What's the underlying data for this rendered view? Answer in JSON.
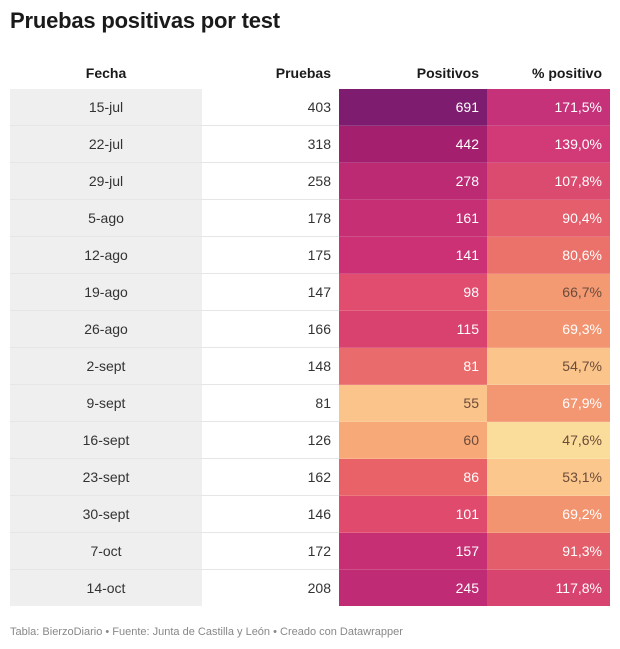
{
  "title": "Pruebas positivas por test",
  "columns": [
    "Fecha",
    "Pruebas",
    "Positivos",
    "% positivo"
  ],
  "footer": "Tabla: BierzoDiario • Fuente: Junta de Castilla y León • Creado con Datawrapper",
  "chart_data": {
    "type": "table",
    "title": "Pruebas positivas por test",
    "columns": [
      "Fecha",
      "Pruebas",
      "Positivos",
      "% positivo"
    ],
    "rows": [
      {
        "fecha": "15-jul",
        "pruebas": "403",
        "positivos": "691",
        "pct": "171,5%",
        "pos_color": "#7e1d6f",
        "pct_color": "#c5327a"
      },
      {
        "fecha": "22-jul",
        "pruebas": "318",
        "positivos": "442",
        "pct": "139,0%",
        "pos_color": "#a4206f",
        "pct_color": "#d13a77"
      },
      {
        "fecha": "29-jul",
        "pruebas": "258",
        "positivos": "278",
        "pct": "107,8%",
        "pos_color": "#bd2a74",
        "pct_color": "#db4a6f"
      },
      {
        "fecha": "5-ago",
        "pruebas": "178",
        "positivos": "161",
        "pct": "90,4%",
        "pos_color": "#c62f74",
        "pct_color": "#e45e6b"
      },
      {
        "fecha": "12-ago",
        "pruebas": "175",
        "positivos": "141",
        "pct": "80,6%",
        "pos_color": "#cb3174",
        "pct_color": "#ea726a"
      },
      {
        "fecha": "19-ago",
        "pruebas": "147",
        "positivos": "98",
        "pct": "66,7%",
        "pos_color": "#e04d6e",
        "pct_color": "#f39a72"
      },
      {
        "fecha": "26-ago",
        "pruebas": "166",
        "positivos": "115",
        "pct": "69,3%",
        "pos_color": "#d9416f",
        "pct_color": "#f2946f"
      },
      {
        "fecha": "2-sept",
        "pruebas": "148",
        "positivos": "81",
        "pct": "54,7%",
        "pos_color": "#ea6b6c",
        "pct_color": "#fbc48a"
      },
      {
        "fecha": "9-sept",
        "pruebas": "81",
        "positivos": "55",
        "pct": "67,9%",
        "pos_color": "#fbc48a",
        "pct_color": "#f39672"
      },
      {
        "fecha": "16-sept",
        "pruebas": "126",
        "positivos": "60",
        "pct": "47,6%",
        "pos_color": "#f8a978",
        "pct_color": "#fadd9a"
      },
      {
        "fecha": "23-sept",
        "pruebas": "162",
        "positivos": "86",
        "pct": "53,1%",
        "pos_color": "#e86268",
        "pct_color": "#fbc78c"
      },
      {
        "fecha": "30-sept",
        "pruebas": "146",
        "positivos": "101",
        "pct": "69,2%",
        "pos_color": "#df4a6d",
        "pct_color": "#f39470"
      },
      {
        "fecha": "7-oct",
        "pruebas": "172",
        "positivos": "157",
        "pct": "91,3%",
        "pos_color": "#c62f74",
        "pct_color": "#e35d6b"
      },
      {
        "fecha": "14-oct",
        "pruebas": "208",
        "positivos": "245",
        "pct": "117,8%",
        "pos_color": "#bf2b74",
        "pct_color": "#d84470"
      }
    ]
  }
}
